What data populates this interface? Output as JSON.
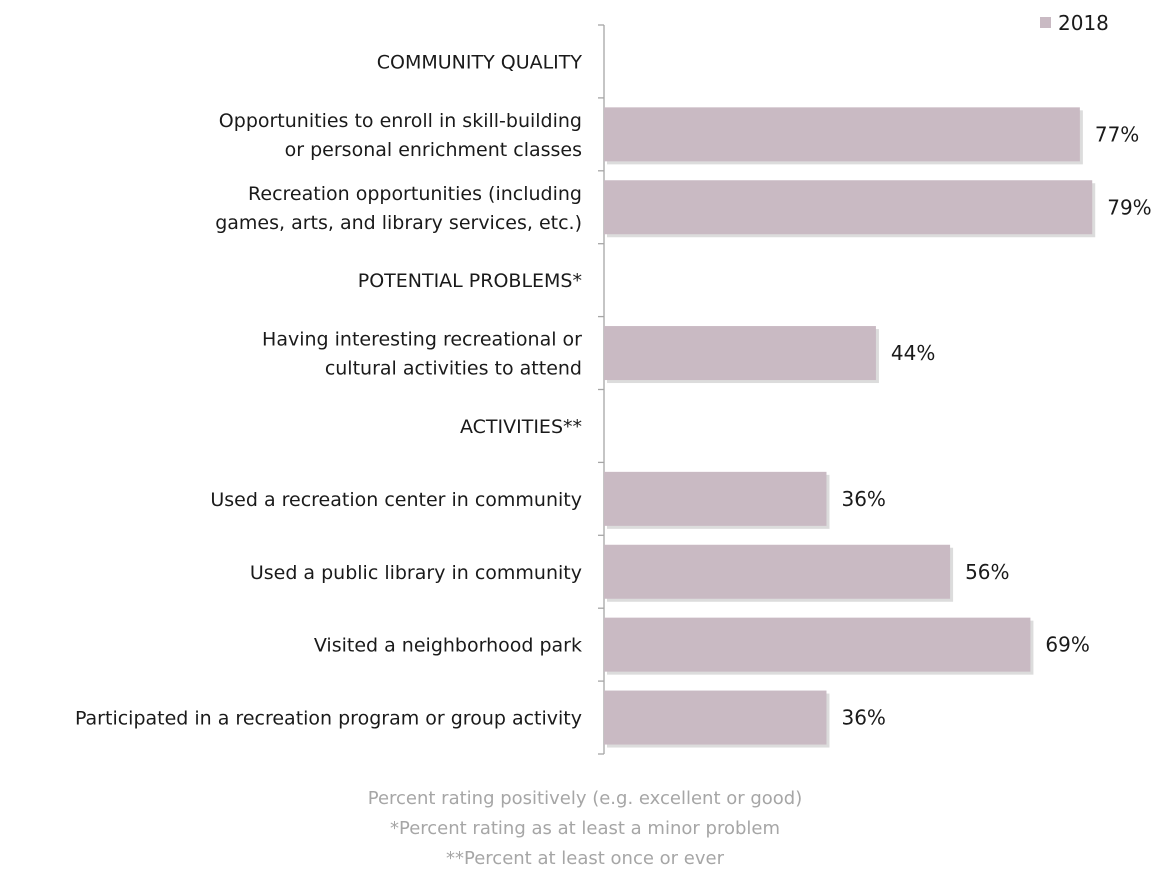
{
  "chart_data": {
    "type": "bar",
    "orientation": "horizontal",
    "legend": {
      "position": "top-right",
      "entries": [
        {
          "name": "2018",
          "color": "#c9bac3"
        }
      ]
    },
    "xlim": [
      0,
      100
    ],
    "grid": false,
    "bar_color": "#c9bac3",
    "rows": [
      {
        "kind": "header",
        "label": [
          "COMMUNITY QUALITY"
        ]
      },
      {
        "kind": "bar",
        "label": [
          "Opportunities to enroll in skill-building",
          "or personal enrichment classes"
        ],
        "value": 77,
        "value_label": "77%"
      },
      {
        "kind": "bar",
        "label": [
          "Recreation opportunities (including",
          "games, arts, and library services, etc.)"
        ],
        "value": 79,
        "value_label": "79%"
      },
      {
        "kind": "header",
        "label": [
          "POTENTIAL PROBLEMS*"
        ]
      },
      {
        "kind": "bar",
        "label": [
          "Having interesting recreational or",
          "cultural activities to attend"
        ],
        "value": 44,
        "value_label": "44%"
      },
      {
        "kind": "header",
        "label": [
          "ACTIVITIES**"
        ]
      },
      {
        "kind": "bar",
        "label": [
          "Used a recreation center in community"
        ],
        "value": 36,
        "value_label": "36%"
      },
      {
        "kind": "bar",
        "label": [
          "Used a public library in community"
        ],
        "value": 56,
        "value_label": "56%"
      },
      {
        "kind": "bar",
        "label": [
          "Visited a neighborhood park"
        ],
        "value": 69,
        "value_label": "69%"
      },
      {
        "kind": "bar",
        "label": [
          "Participated in a recreation program or group activity"
        ],
        "value": 36,
        "value_label": "36%"
      }
    ],
    "footnotes": [
      "Percent rating positively (e.g. excellent or good)",
      "*Percent rating as at least a minor problem",
      "**Percent at least once or ever"
    ]
  }
}
